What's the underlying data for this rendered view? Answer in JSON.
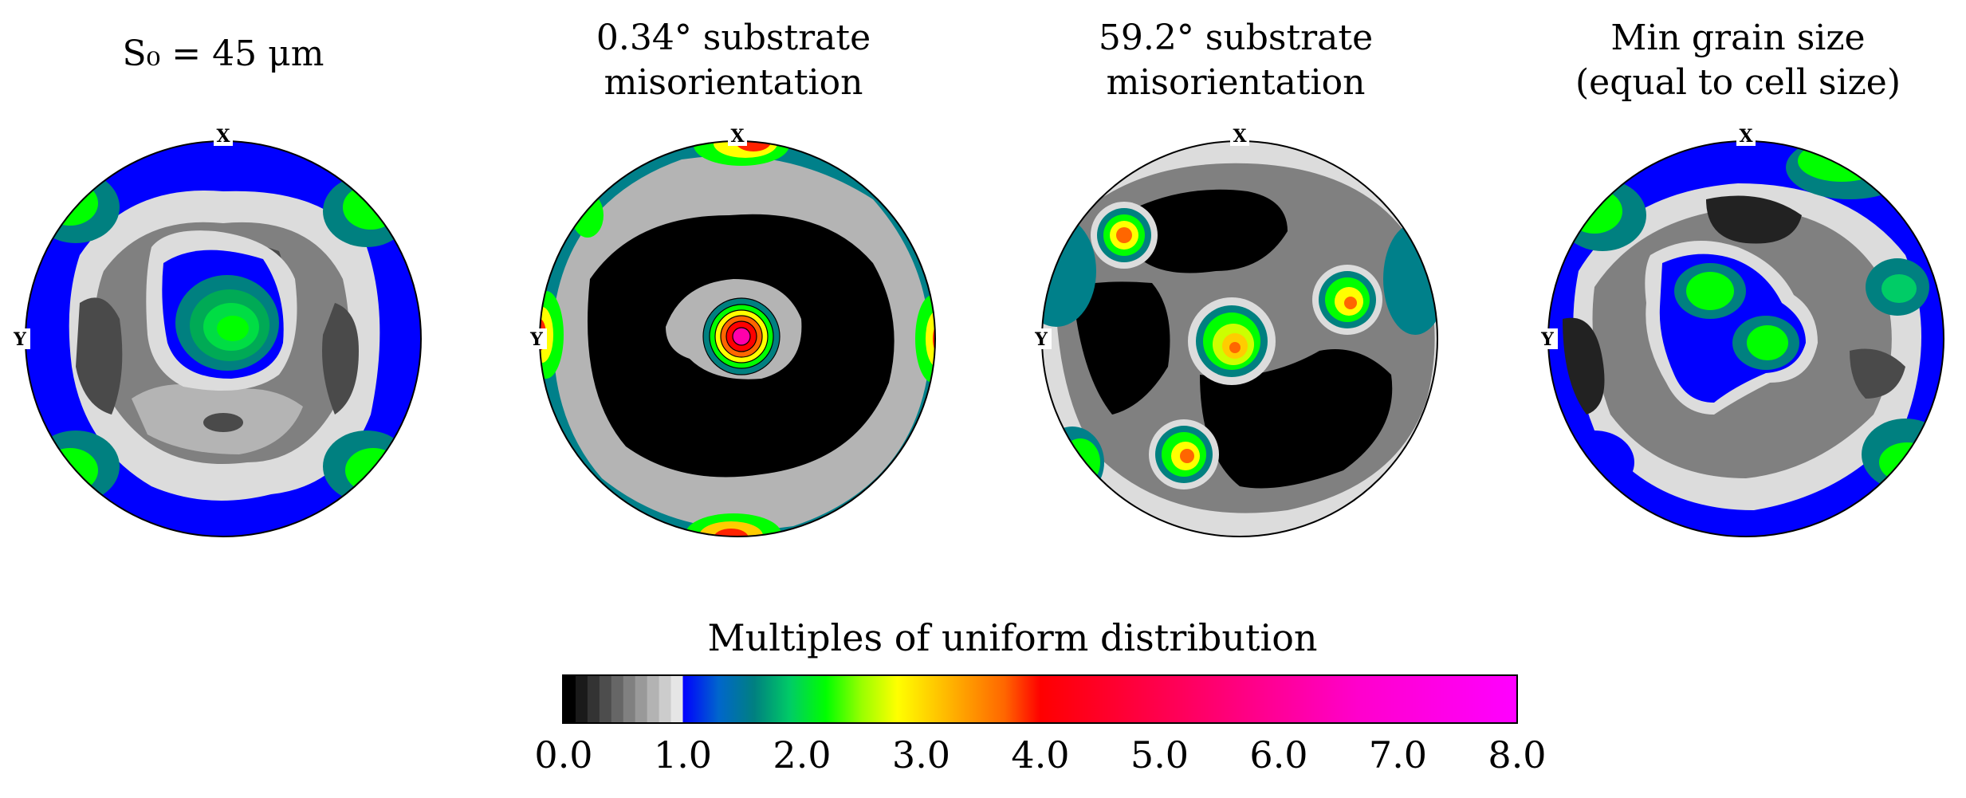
{
  "panels": [
    {
      "title_line1": "S₀ = 45 μm",
      "title_line2": "",
      "x_label": "X",
      "y_label": "Y"
    },
    {
      "title_line1": "0.34° substrate",
      "title_line2": "misorientation",
      "x_label": "X",
      "y_label": "Y"
    },
    {
      "title_line1": "59.2° substrate",
      "title_line2": "misorientation",
      "x_label": "X",
      "y_label": "Y"
    },
    {
      "title_line1": "Min grain size",
      "title_line2": "(equal to cell size)",
      "x_label": "X",
      "y_label": "Y"
    }
  ],
  "colorbar": {
    "title": "Multiples of uniform distribution",
    "ticks": [
      "0.0",
      "1.0",
      "2.0",
      "3.0",
      "4.0",
      "5.0",
      "6.0",
      "7.0",
      "8.0"
    ],
    "range": [
      0,
      8
    ],
    "low_colors": [
      "#000000",
      "#1a1a1a",
      "#333333",
      "#4d4d4d",
      "#666666",
      "#808080",
      "#999999",
      "#b3b3b3",
      "#cccccc",
      "#e6e6e6"
    ],
    "mid_stops": [
      "#0000ff",
      "#0066cc",
      "#008080",
      "#00cc66",
      "#00ff00",
      "#99ff00",
      "#ffff00",
      "#ffcc00",
      "#ff9900",
      "#ff6600",
      "#ff0000"
    ],
    "high_stops": [
      "#ff0000",
      "#ff0066",
      "#ff00cc",
      "#ff00ff"
    ]
  },
  "colors": {
    "black": "#000000",
    "dark_gray": "#4a4a4a",
    "mid_gray": "#808080",
    "light_gray": "#b4b4b4",
    "pale_gray": "#dcdcdc",
    "blue": "#0000ff",
    "teal": "#00808a",
    "green": "#00cc66",
    "lime": "#00ff00",
    "yellow": "#ffff00",
    "orange": "#ff9900",
    "red": "#ff2200",
    "magenta": "#ff00cc"
  }
}
